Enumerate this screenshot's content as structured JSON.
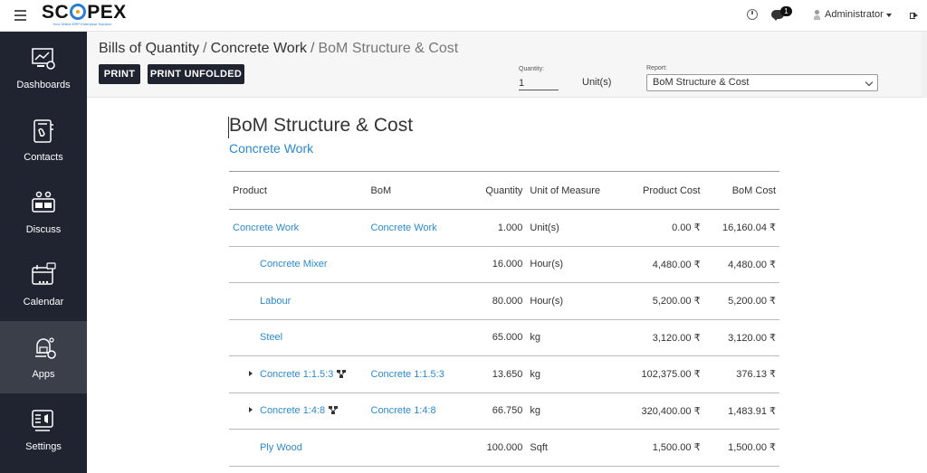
{
  "topbar": {
    "logo_text_left": "SC",
    "logo_text_right": "PEX",
    "logo_tagline": "Your Online ERP Enterprise Solution",
    "notification_count": "1",
    "user_name": "Administrator"
  },
  "sidebar": {
    "items": [
      {
        "label": "Dashboards",
        "icon": "dashboard-icon"
      },
      {
        "label": "Contacts",
        "icon": "contacts-icon"
      },
      {
        "label": "Discuss",
        "icon": "discuss-icon"
      },
      {
        "label": "Calendar",
        "icon": "calendar-icon"
      },
      {
        "label": "Apps",
        "icon": "apps-icon",
        "active": true
      },
      {
        "label": "Settings",
        "icon": "settings-icon"
      }
    ]
  },
  "header": {
    "breadcrumb": [
      "Bills of Quantity",
      "Concrete Work",
      "BoM Structure & Cost"
    ],
    "print_label": "PRINT",
    "print_unfolded_label": "PRINT UNFOLDED",
    "quantity_label": "Quantity:",
    "quantity_value": "1",
    "unit_text": "Unit(s)",
    "report_label": "Report:",
    "report_value": "BoM Structure & Cost"
  },
  "report": {
    "title": "BoM Structure & Cost",
    "subtitle": "Concrete Work",
    "columns": [
      "Product",
      "BoM",
      "Quantity",
      "Unit of Measure",
      "Product Cost",
      "BoM Cost"
    ],
    "rows": [
      {
        "product": "Concrete Work",
        "bom": "Concrete Work",
        "quantity": "1.000",
        "uom": "Unit(s)",
        "product_cost": "0.00 ₹",
        "bom_cost": "16,160.04 ₹",
        "level": 0,
        "expandable": false
      },
      {
        "product": "Concrete Mixer",
        "bom": "",
        "quantity": "16.000",
        "uom": "Hour(s)",
        "product_cost": "4,480.00 ₹",
        "bom_cost": "4,480.00 ₹",
        "level": 1,
        "expandable": false
      },
      {
        "product": "Labour",
        "bom": "",
        "quantity": "80.000",
        "uom": "Hour(s)",
        "product_cost": "5,200.00 ₹",
        "bom_cost": "5,200.00 ₹",
        "level": 1,
        "expandable": false
      },
      {
        "product": "Steel",
        "bom": "",
        "quantity": "65.000",
        "uom": "kg",
        "product_cost": "3,120.00 ₹",
        "bom_cost": "3,120.00 ₹",
        "level": 1,
        "expandable": false
      },
      {
        "product": "Concrete 1:1.5:3",
        "bom": "Concrete 1:1.5:3",
        "quantity": "13.650",
        "uom": "kg",
        "product_cost": "102,375.00 ₹",
        "bom_cost": "376.13 ₹",
        "level": 1,
        "expandable": true
      },
      {
        "product": "Concrete 1:4:8",
        "bom": "Concrete 1:4:8",
        "quantity": "66.750",
        "uom": "kg",
        "product_cost": "320,400.00 ₹",
        "bom_cost": "1,483.91 ₹",
        "level": 1,
        "expandable": true
      },
      {
        "product": "Ply Wood",
        "bom": "",
        "quantity": "100.000",
        "uom": "Sqft",
        "product_cost": "1,500.00 ₹",
        "bom_cost": "1,500.00 ₹",
        "level": 1,
        "expandable": false
      }
    ]
  }
}
